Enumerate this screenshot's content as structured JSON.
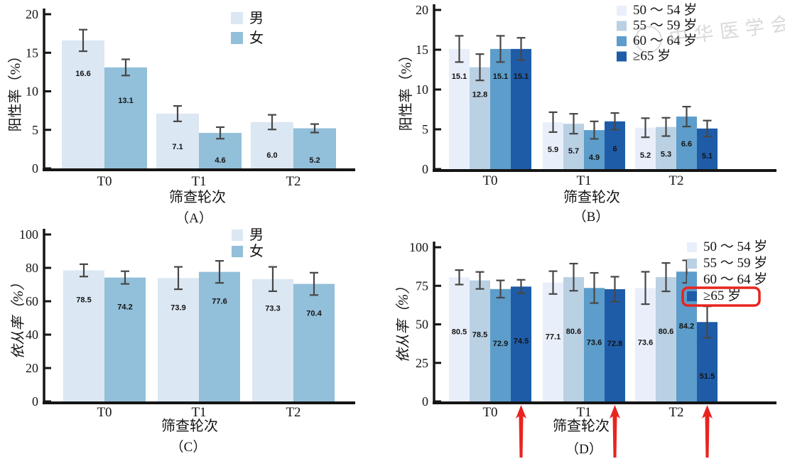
{
  "watermark": {
    "text": "中华医学会"
  },
  "chart_data": [
    {
      "id": "A",
      "type": "bar",
      "panel_label": "（A）",
      "xlabel": "筛查轮次",
      "ylabel": "阳性率（%）",
      "categories": [
        "T0",
        "T1",
        "T2"
      ],
      "ylim": [
        0,
        20
      ],
      "yticks": [
        0,
        5,
        10,
        15,
        20
      ],
      "grid": false,
      "legend_position": "top-right-inside",
      "series": [
        {
          "name": "男",
          "color": "#dbe7f3",
          "values": [
            16.6,
            7.1,
            6.0
          ],
          "labels": [
            "16.6",
            "7.1",
            "6.0"
          ],
          "errors": [
            1.4,
            1.0,
            0.95
          ]
        },
        {
          "name": "女",
          "color": "#92bfd9",
          "values": [
            13.1,
            4.6,
            5.2
          ],
          "labels": [
            "13.1",
            "4.6",
            "5.2"
          ],
          "errors": [
            1.05,
            0.75,
            0.55
          ]
        }
      ]
    },
    {
      "id": "B",
      "type": "bar",
      "panel_label": "（B）",
      "xlabel": "筛查轮次",
      "ylabel": "阳性率（%）",
      "categories": [
        "T0",
        "T1",
        "T2"
      ],
      "ylim": [
        0,
        20
      ],
      "yticks": [
        0,
        5,
        10,
        15,
        20
      ],
      "grid": false,
      "legend_position": "top-right-inside",
      "series": [
        {
          "name": "50 ～ 54 岁",
          "color": "#e9effa",
          "values": [
            15.1,
            5.9,
            5.2
          ],
          "labels": [
            "15.1",
            "5.9",
            "5.2"
          ],
          "errors": [
            1.65,
            1.25,
            1.2
          ]
        },
        {
          "name": "55 ～ 59 岁",
          "color": "#bad0e3",
          "values": [
            12.8,
            5.7,
            5.3
          ],
          "labels": [
            "12.8",
            "5.7",
            "5.3"
          ],
          "errors": [
            1.65,
            1.25,
            1.15
          ]
        },
        {
          "name": "60 ～ 64 岁",
          "color": "#5c9dcb",
          "values": [
            15.1,
            4.9,
            6.6
          ],
          "labels": [
            "15.1",
            "4.9",
            "6.6"
          ],
          "errors": [
            1.65,
            1.1,
            1.25
          ]
        },
        {
          "name": "≥65 岁",
          "color": "#1e5ca8",
          "values": [
            15.1,
            6.0,
            5.1
          ],
          "labels": [
            "15.1",
            "6",
            "5.1"
          ],
          "errors": [
            1.4,
            1.05,
            1.0
          ]
        }
      ]
    },
    {
      "id": "C",
      "type": "bar",
      "panel_label": "（C）",
      "xlabel": "筛查轮次",
      "ylabel": "依从率（%）",
      "categories": [
        "T0",
        "T1",
        "T2"
      ],
      "ylim": [
        0,
        100
      ],
      "yticks": [
        0,
        20,
        40,
        60,
        80,
        100
      ],
      "grid": false,
      "legend_position": "top-right-inside",
      "series": [
        {
          "name": "男",
          "color": "#dbe7f3",
          "values": [
            78.5,
            73.9,
            73.3
          ],
          "labels": [
            "78.5",
            "73.9",
            "73.3"
          ],
          "errors": [
            3.7,
            6.7,
            7.3
          ]
        },
        {
          "name": "女",
          "color": "#92bfd9",
          "values": [
            74.2,
            77.6,
            70.4
          ],
          "labels": [
            "74.2",
            "77.6",
            "70.4"
          ],
          "errors": [
            3.8,
            6.6,
            6.7
          ]
        }
      ]
    },
    {
      "id": "D",
      "type": "bar",
      "panel_label": "（D）",
      "xlabel": "筛查轮次",
      "ylabel": "依从率（%）",
      "categories": [
        "T0",
        "T1",
        "T2"
      ],
      "ylim": [
        0,
        100
      ],
      "yticks": [
        0,
        25,
        50,
        75,
        100
      ],
      "grid": false,
      "legend_position": "top-right-inside",
      "series": [
        {
          "name": "50 ～ 54 岁",
          "color": "#e9effa",
          "values": [
            80.5,
            77.1,
            73.6
          ],
          "labels": [
            "80.5",
            "77.1",
            "73.6"
          ],
          "errors": [
            4.7,
            7.4,
            10.5
          ]
        },
        {
          "name": "55 ～ 59 岁",
          "color": "#bad0e3",
          "values": [
            78.5,
            80.6,
            80.6
          ],
          "labels": [
            "78.5",
            "80.6",
            "80.6"
          ],
          "errors": [
            5.5,
            8.8,
            9.2
          ]
        },
        {
          "name": "60 ～ 64 岁",
          "color": "#5c9dcb",
          "values": [
            72.9,
            73.6,
            84.2
          ],
          "labels": [
            "72.9",
            "73.6",
            "84.2"
          ],
          "errors": [
            5.6,
            9.8,
            7.3
          ]
        },
        {
          "name": "≥65 岁",
          "color": "#1e5ca8",
          "values": [
            74.5,
            72.8,
            51.5
          ],
          "labels": [
            "74.5",
            "72.8",
            "51.5"
          ],
          "errors": [
            4.4,
            8.1,
            10.2
          ]
        }
      ],
      "annotations": {
        "highlight_legend_item": "≥65 岁",
        "highlight_box_color": "#e8241f",
        "arrows": {
          "color": "#e8241f",
          "target_series": "≥65 岁",
          "at_categories": [
            "T0",
            "T1",
            "T2"
          ]
        }
      }
    }
  ]
}
